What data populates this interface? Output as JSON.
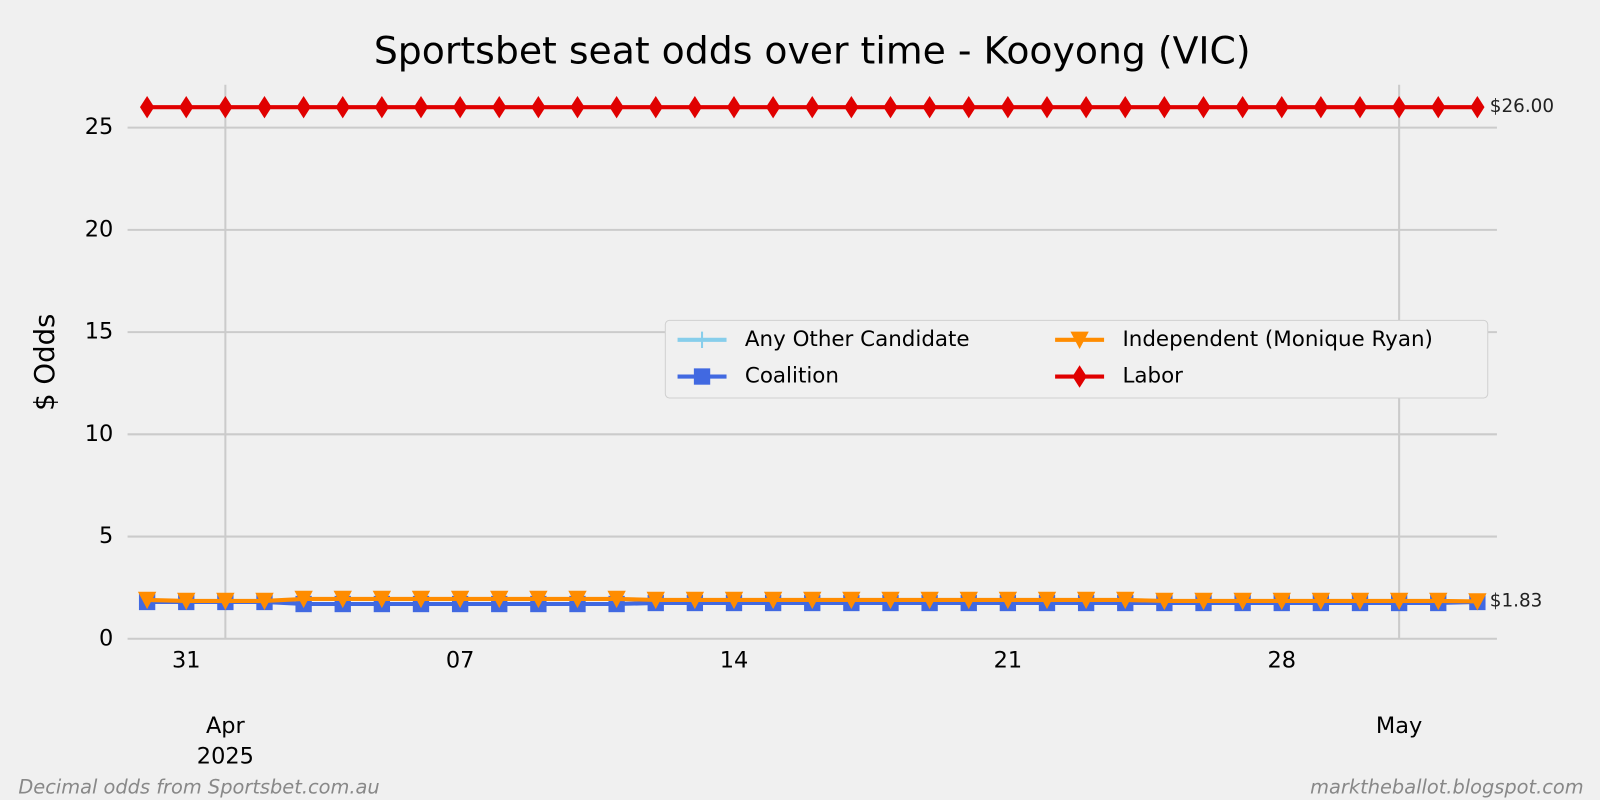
{
  "chart_data": {
    "type": "line",
    "title": "Sportsbet seat odds over time - Kooyong (VIC)",
    "y_label": "$ Odds",
    "x": [
      "2025-03-30",
      "2025-03-31",
      "2025-04-01",
      "2025-04-02",
      "2025-04-03",
      "2025-04-04",
      "2025-04-05",
      "2025-04-06",
      "2025-04-07",
      "2025-04-08",
      "2025-04-09",
      "2025-04-10",
      "2025-04-11",
      "2025-04-12",
      "2025-04-13",
      "2025-04-14",
      "2025-04-15",
      "2025-04-16",
      "2025-04-17",
      "2025-04-18",
      "2025-04-19",
      "2025-04-20",
      "2025-04-21",
      "2025-04-22",
      "2025-04-23",
      "2025-04-24",
      "2025-04-25",
      "2025-04-26",
      "2025-04-27",
      "2025-04-28",
      "2025-04-29",
      "2025-04-30",
      "2025-05-01",
      "2025-05-02",
      "2025-05-03"
    ],
    "series": [
      {
        "name": "Any Other Candidate",
        "color": "#87ceeb",
        "marker": "plus",
        "values": [
          null,
          null,
          null,
          null,
          null,
          null,
          null,
          null,
          null,
          null,
          null,
          null,
          null,
          null,
          null,
          null,
          null,
          null,
          null,
          null,
          null,
          null,
          null,
          null,
          null,
          null,
          null,
          null,
          null,
          null,
          null,
          null,
          null,
          null,
          null
        ]
      },
      {
        "name": "Coalition",
        "color": "#4169e1",
        "marker": "square",
        "values": [
          1.8,
          1.8,
          1.8,
          1.8,
          1.7,
          1.7,
          1.7,
          1.7,
          1.7,
          1.7,
          1.7,
          1.7,
          1.7,
          1.75,
          1.75,
          1.75,
          1.75,
          1.75,
          1.75,
          1.75,
          1.75,
          1.75,
          1.75,
          1.75,
          1.75,
          1.75,
          1.75,
          1.75,
          1.75,
          1.75,
          1.75,
          1.75,
          1.75,
          1.75,
          1.8
        ]
      },
      {
        "name": "Independent (Monique Ryan)",
        "color": "#ff8c00",
        "marker": "triangle-down",
        "values": [
          1.9,
          1.85,
          1.85,
          1.85,
          1.95,
          1.95,
          1.95,
          1.95,
          1.95,
          1.95,
          1.95,
          1.95,
          1.95,
          1.9,
          1.9,
          1.9,
          1.9,
          1.9,
          1.9,
          1.9,
          1.9,
          1.9,
          1.9,
          1.9,
          1.9,
          1.9,
          1.85,
          1.85,
          1.85,
          1.85,
          1.85,
          1.85,
          1.85,
          1.85,
          1.83
        ],
        "value_labels": [
          null,
          null,
          null,
          null,
          null,
          null,
          null,
          null,
          null,
          null,
          null,
          null,
          null,
          null,
          null,
          null,
          null,
          null,
          null,
          null,
          null,
          null,
          null,
          null,
          null,
          null,
          null,
          null,
          null,
          null,
          null,
          null,
          null,
          null,
          "$1.83"
        ]
      },
      {
        "name": "Labor",
        "color": "#e00000",
        "marker": "diamond",
        "values": [
          26,
          26,
          26,
          26,
          26,
          26,
          26,
          26,
          26,
          26,
          26,
          26,
          26,
          26,
          26,
          26,
          26,
          26,
          26,
          26,
          26,
          26,
          26,
          26,
          26,
          26,
          26,
          26,
          26,
          26,
          26,
          26,
          26,
          26,
          26
        ],
        "value_labels": [
          null,
          null,
          null,
          null,
          null,
          null,
          null,
          null,
          null,
          null,
          null,
          null,
          null,
          null,
          null,
          null,
          null,
          null,
          null,
          null,
          null,
          null,
          null,
          null,
          null,
          null,
          null,
          null,
          null,
          null,
          null,
          null,
          null,
          null,
          "$26.00"
        ]
      }
    ],
    "xlim": [
      "2025-03-29T12:00",
      "2025-05-03T12:00"
    ],
    "xticks": [
      {
        "value": "2025-03-31",
        "label": "31"
      },
      {
        "value": "2025-04-07",
        "label": "07"
      },
      {
        "value": "2025-04-14",
        "label": "14"
      },
      {
        "value": "2025-04-21",
        "label": "21"
      },
      {
        "value": "2025-04-28",
        "label": "28"
      }
    ],
    "xticks_major": [
      {
        "value": "2025-04-01",
        "label": [
          "Apr",
          "2025"
        ]
      },
      {
        "value": "2025-05-01",
        "label": [
          "May"
        ]
      }
    ],
    "ylim": [
      0,
      27.1
    ],
    "yticks": [
      0,
      5,
      10,
      15,
      20,
      25
    ],
    "grid": true,
    "legend_loc": "center right",
    "legend_ncol": 2,
    "footnote_left": "Decimal odds from Sportsbet.com.au",
    "footnote_right": "marktheballot.blogspot.com"
  }
}
